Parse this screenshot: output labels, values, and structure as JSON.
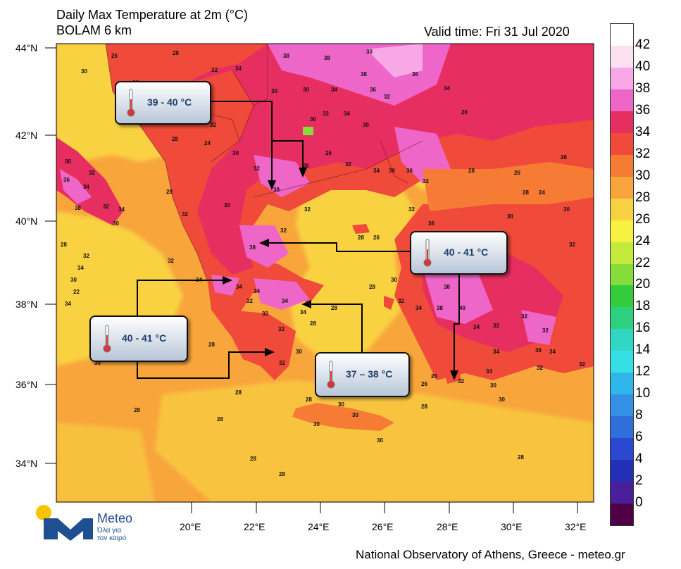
{
  "header": {
    "title_line1": "Daily Max Temperature at 2m (°C)",
    "title_line2": "BOLAM 6 km",
    "valid_time": "Valid time: Fri 31 Jul 2020"
  },
  "footer": {
    "credit": "National Observatory of Athens, Greece - meteo.gr"
  },
  "logo": {
    "name": "Meteo",
    "slogan_line1": "Όλα για",
    "slogan_line2": "τον καιρό",
    "colors": {
      "sun": "#f6c400",
      "m": "#1d4f91"
    }
  },
  "axes": {
    "lat_labels": [
      "44°N",
      "42°N",
      "40°N",
      "38°N",
      "36°N",
      "34°N"
    ],
    "lon_labels": [
      "20°E",
      "22°E",
      "24°E",
      "26°E",
      "28°E",
      "30°E",
      "32°E"
    ]
  },
  "colorbar": {
    "labels": [
      "42",
      "40",
      "38",
      "36",
      "34",
      "32",
      "30",
      "28",
      "26",
      "24",
      "22",
      "20",
      "18",
      "16",
      "14",
      "12",
      "10",
      "8",
      "6",
      "4",
      "2",
      "0"
    ],
    "colors": [
      "#ffffff",
      "#fbe0f2",
      "#f8a8e6",
      "#ef66c9",
      "#e72e61",
      "#ef4a3a",
      "#f67b34",
      "#f8a53c",
      "#f9d243",
      "#f6f23f",
      "#c4ea3c",
      "#86dc3a",
      "#34cc3c",
      "#2cd07e",
      "#30d8c4",
      "#34e0e6",
      "#2fb7ea",
      "#3390e6",
      "#2f6fdc",
      "#2a48d0",
      "#2230b6",
      "#4a1f9a",
      "#500046"
    ]
  },
  "callouts": [
    {
      "text": "39 - 40 °C",
      "range": "39 - 40",
      "unit": "oC"
    },
    {
      "text": "40 - 41 °C",
      "range": "40 - 41",
      "unit": "oC"
    },
    {
      "text": "40 - 41 °C",
      "range": "40 - 41",
      "unit": "oC"
    },
    {
      "text": "37 – 38 °C",
      "range": "37 – 38",
      "unit": "oC"
    }
  ],
  "isolabels": [
    "26",
    "28",
    "30",
    "32",
    "34",
    "36",
    "38",
    "40"
  ],
  "colors": {
    "sea": "#f8a53c",
    "land_hot": "#e72e61",
    "land_very_hot": "#ef66c9",
    "land_warm": "#f67b34",
    "coast": "#f9d243"
  }
}
